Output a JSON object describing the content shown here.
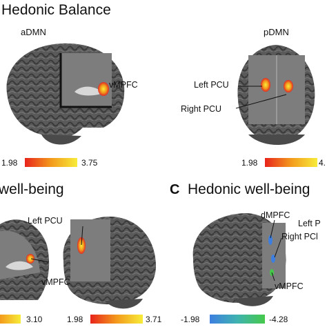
{
  "panel_top": {
    "title": "Hedonic Balance",
    "left_view": "aDMN",
    "right_view": "pDMN",
    "left_scale": {
      "min": "1.98",
      "max": "3.75"
    },
    "right_scale": {
      "min": "1.98",
      "max": "4."
    },
    "labels": {
      "vmpfc": "vMPFC",
      "left_pcu": "Left PCU",
      "right_pcu": "Right PCU"
    }
  },
  "panel_b": {
    "title": "well-being",
    "left_scale": {
      "max": "3.10"
    },
    "right_scale": {
      "min": "1.98",
      "max": "3.71"
    },
    "labels": {
      "left_pcu": "Left PCU",
      "vmpfc": "vMPFC"
    }
  },
  "panel_c": {
    "letter": "C",
    "title": "Hedonic well-being",
    "scale": {
      "min": "-1.98",
      "max": "-4.28"
    },
    "labels": {
      "dmpfc": "dMPFC",
      "left_p": "Left P",
      "right_pc": "Right PCl",
      "vmpfc": "vMPFC"
    }
  },
  "colors": {
    "hot_low": "#e8241c",
    "hot_high": "#f7ec3a",
    "cold_low": "#3d7fe0",
    "cold_high": "#46c94a",
    "brain": "#5e5e5e"
  }
}
